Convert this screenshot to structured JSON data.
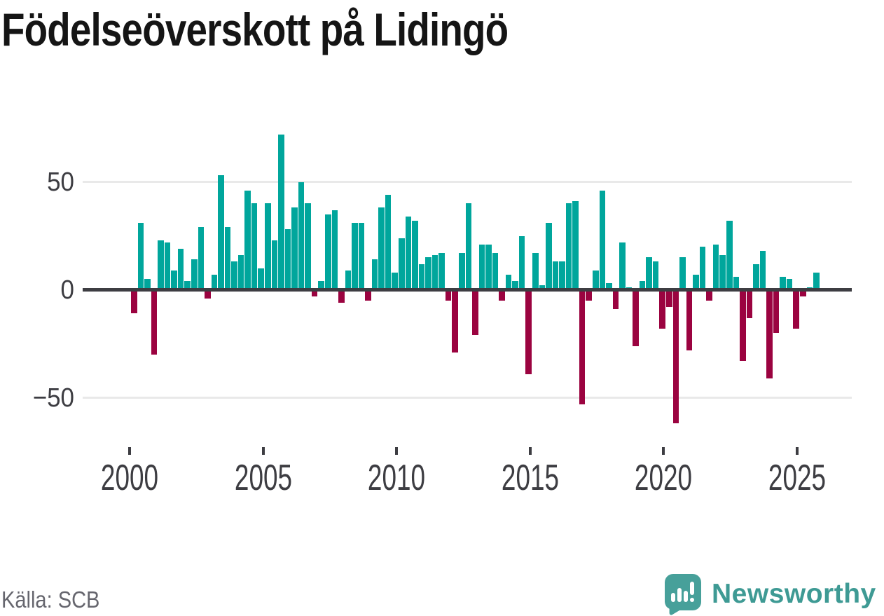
{
  "header": {
    "title": "Födelseöverskott på Lidingö"
  },
  "footer": {
    "source_label": "Källa: SCB",
    "branding": {
      "name": "Newsworthy",
      "logo_icon": "speech-bubble-bar-chart-icon",
      "brand_color": "#3e9a94"
    }
  },
  "colors": {
    "positive_bar": "#00a69c",
    "negative_bar": "#9b0340",
    "zero_line": "#3d3d42",
    "gridline": "#e9e9e9",
    "axis_text": "#3d3d42",
    "title_text": "#151515",
    "source_text": "#66666e"
  },
  "chart_data": {
    "type": "bar",
    "title": "Födelseöverskott på Lidingö",
    "frequency": "quarterly",
    "start_period": "2000-Q1",
    "end_period": "2025-Q3",
    "grid": "horizontal",
    "legend": "none",
    "ylim": [
      -70,
      80
    ],
    "y_ticks": [
      {
        "value": 50,
        "label": "50"
      },
      {
        "value": 0,
        "label": "0"
      },
      {
        "value": -50,
        "label": "−50"
      }
    ],
    "x_ticks": [
      "2000",
      "2005",
      "2010",
      "2015",
      "2020",
      "2025"
    ],
    "series": [
      {
        "year": 2000,
        "values": [
          -11,
          31,
          5,
          -30
        ]
      },
      {
        "year": 2001,
        "values": [
          23,
          22,
          9,
          19
        ]
      },
      {
        "year": 2002,
        "values": [
          4,
          14,
          29,
          -4
        ]
      },
      {
        "year": 2003,
        "values": [
          7,
          53,
          29,
          13
        ]
      },
      {
        "year": 2004,
        "values": [
          16,
          46,
          40,
          10
        ]
      },
      {
        "year": 2005,
        "values": [
          40,
          23,
          72,
          28
        ]
      },
      {
        "year": 2006,
        "values": [
          38,
          50,
          40,
          -3
        ]
      },
      {
        "year": 2007,
        "values": [
          4,
          35,
          37,
          -6
        ]
      },
      {
        "year": 2008,
        "values": [
          9,
          31,
          31,
          -5
        ]
      },
      {
        "year": 2009,
        "values": [
          14,
          38,
          44,
          8
        ]
      },
      {
        "year": 2010,
        "values": [
          24,
          34,
          32,
          12
        ]
      },
      {
        "year": 2011,
        "values": [
          15,
          16,
          17,
          -5
        ]
      },
      {
        "year": 2012,
        "values": [
          -29,
          17,
          40,
          -21
        ]
      },
      {
        "year": 2013,
        "values": [
          21,
          21,
          17,
          -5
        ]
      },
      {
        "year": 2014,
        "values": [
          7,
          4,
          25,
          -39
        ]
      },
      {
        "year": 2015,
        "values": [
          17,
          2,
          31,
          13
        ]
      },
      {
        "year": 2016,
        "values": [
          13,
          40,
          41,
          -53
        ]
      },
      {
        "year": 2017,
        "values": [
          -5,
          9,
          46,
          3
        ]
      },
      {
        "year": 2018,
        "values": [
          -9,
          22,
          1,
          -26
        ]
      },
      {
        "year": 2019,
        "values": [
          4,
          15,
          13,
          -18
        ]
      },
      {
        "year": 2020,
        "values": [
          -8,
          -62,
          15,
          -28
        ]
      },
      {
        "year": 2021,
        "values": [
          7,
          20,
          -5,
          21
        ]
      },
      {
        "year": 2022,
        "values": [
          16,
          32,
          6,
          -33
        ]
      },
      {
        "year": 2023,
        "values": [
          -13,
          12,
          18,
          -41
        ]
      },
      {
        "year": 2024,
        "values": [
          -20,
          6,
          5,
          -18
        ]
      },
      {
        "year": 2025,
        "values": [
          -3,
          1,
          8
        ]
      }
    ]
  }
}
